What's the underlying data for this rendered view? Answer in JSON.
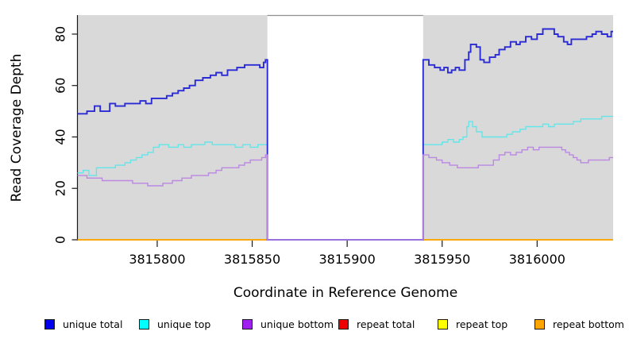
{
  "chart_data": {
    "type": "line",
    "title": "",
    "xlabel": "Coordinate in Reference Genome",
    "ylabel": "Read Coverage Depth",
    "xlim": [
      3815758,
      3816040
    ],
    "ylim": [
      0,
      87.4
    ],
    "x_ticks": [
      3815800,
      3815850,
      3815900,
      3815950,
      3816000
    ],
    "y_ticks": [
      0,
      20,
      40,
      60,
      80
    ],
    "grid": false,
    "plot_bg": "#d9d9d9",
    "gap_region": {
      "start": 3815858,
      "end": 3815940,
      "fill": "#ffffff",
      "top_border": "#8f8f8f"
    },
    "step_mode": "after",
    "legend_position": "bottom",
    "draw_order": [
      3,
      4,
      5,
      1,
      0,
      2
    ],
    "series": [
      {
        "name": "unique total",
        "color": "#2b2bd5",
        "legend_color": "#0000ee",
        "width": 1.9,
        "points": [
          [
            3815758,
            49
          ],
          [
            3815763,
            50
          ],
          [
            3815767,
            52
          ],
          [
            3815770,
            50
          ],
          [
            3815775,
            53
          ],
          [
            3815778,
            52
          ],
          [
            3815783,
            53
          ],
          [
            3815787,
            53
          ],
          [
            3815791,
            54
          ],
          [
            3815794,
            53
          ],
          [
            3815797,
            55
          ],
          [
            3815801,
            55
          ],
          [
            3815805,
            56
          ],
          [
            3815808,
            57
          ],
          [
            3815811,
            58
          ],
          [
            3815814,
            59
          ],
          [
            3815817,
            60
          ],
          [
            3815820,
            62
          ],
          [
            3815824,
            63
          ],
          [
            3815828,
            64
          ],
          [
            3815831,
            65
          ],
          [
            3815834,
            64
          ],
          [
            3815837,
            66
          ],
          [
            3815842,
            67
          ],
          [
            3815846,
            68
          ],
          [
            3815851,
            68
          ],
          [
            3815854,
            67
          ],
          [
            3815856,
            69
          ],
          [
            3815857,
            70
          ],
          [
            3815858,
            0
          ],
          [
            3815940,
            70
          ],
          [
            3815943,
            68
          ],
          [
            3815946,
            67
          ],
          [
            3815949,
            66
          ],
          [
            3815951,
            67
          ],
          [
            3815953,
            65
          ],
          [
            3815955,
            66
          ],
          [
            3815957,
            67
          ],
          [
            3815959,
            66
          ],
          [
            3815962,
            70
          ],
          [
            3815964,
            73
          ],
          [
            3815965,
            76
          ],
          [
            3815968,
            75
          ],
          [
            3815970,
            70
          ],
          [
            3815972,
            69
          ],
          [
            3815975,
            71
          ],
          [
            3815978,
            72
          ],
          [
            3815980,
            74
          ],
          [
            3815983,
            75
          ],
          [
            3815986,
            77
          ],
          [
            3815989,
            76
          ],
          [
            3815991,
            77
          ],
          [
            3815994,
            79
          ],
          [
            3815997,
            78
          ],
          [
            3816000,
            80
          ],
          [
            3816003,
            82
          ],
          [
            3816007,
            82
          ],
          [
            3816009,
            80
          ],
          [
            3816011,
            79
          ],
          [
            3816014,
            77
          ],
          [
            3816016,
            76
          ],
          [
            3816018,
            78
          ],
          [
            3816023,
            78
          ],
          [
            3816026,
            79
          ],
          [
            3816029,
            80
          ],
          [
            3816031,
            81
          ],
          [
            3816034,
            80
          ],
          [
            3816037,
            79
          ],
          [
            3816039,
            81
          ]
        ]
      },
      {
        "name": "unique top",
        "color": "#62e6ea",
        "legend_color": "#00ffff",
        "width": 1.4,
        "points": [
          [
            3815758,
            26
          ],
          [
            3815761,
            27
          ],
          [
            3815764,
            25
          ],
          [
            3815768,
            28
          ],
          [
            3815774,
            28
          ],
          [
            3815778,
            29
          ],
          [
            3815783,
            30
          ],
          [
            3815786,
            31
          ],
          [
            3815789,
            32
          ],
          [
            3815792,
            33
          ],
          [
            3815795,
            34
          ],
          [
            3815798,
            36
          ],
          [
            3815801,
            37
          ],
          [
            3815806,
            36
          ],
          [
            3815811,
            37
          ],
          [
            3815814,
            36
          ],
          [
            3815818,
            37
          ],
          [
            3815825,
            38
          ],
          [
            3815829,
            37
          ],
          [
            3815836,
            37
          ],
          [
            3815841,
            36
          ],
          [
            3815845,
            37
          ],
          [
            3815849,
            36
          ],
          [
            3815853,
            37
          ],
          [
            3815858,
            0
          ],
          [
            3815940,
            37
          ],
          [
            3815946,
            37
          ],
          [
            3815950,
            38
          ],
          [
            3815953,
            39
          ],
          [
            3815956,
            38
          ],
          [
            3815959,
            39
          ],
          [
            3815961,
            40
          ],
          [
            3815963,
            44
          ],
          [
            3815964,
            46
          ],
          [
            3815966,
            44
          ],
          [
            3815968,
            42
          ],
          [
            3815971,
            40
          ],
          [
            3815980,
            40
          ],
          [
            3815984,
            41
          ],
          [
            3815987,
            42
          ],
          [
            3815991,
            43
          ],
          [
            3815994,
            44
          ],
          [
            3816003,
            45
          ],
          [
            3816006,
            44
          ],
          [
            3816009,
            45
          ],
          [
            3816019,
            46
          ],
          [
            3816023,
            47
          ],
          [
            3816031,
            47
          ],
          [
            3816034,
            48
          ]
        ]
      },
      {
        "name": "unique bottom",
        "color": "#bb88e2",
        "legend_color": "#a020f0",
        "width": 1.4,
        "points": [
          [
            3815758,
            25
          ],
          [
            3815763,
            24
          ],
          [
            3815767,
            24
          ],
          [
            3815771,
            23
          ],
          [
            3815776,
            23
          ],
          [
            3815787,
            22
          ],
          [
            3815795,
            21
          ],
          [
            3815803,
            22
          ],
          [
            3815808,
            23
          ],
          [
            3815813,
            24
          ],
          [
            3815818,
            25
          ],
          [
            3815823,
            25
          ],
          [
            3815827,
            26
          ],
          [
            3815831,
            27
          ],
          [
            3815834,
            28
          ],
          [
            3815839,
            28
          ],
          [
            3815843,
            29
          ],
          [
            3815846,
            30
          ],
          [
            3815849,
            31
          ],
          [
            3815853,
            31
          ],
          [
            3815855,
            32
          ],
          [
            3815857,
            33
          ],
          [
            3815858,
            0
          ],
          [
            3815940,
            33
          ],
          [
            3815943,
            32
          ],
          [
            3815947,
            31
          ],
          [
            3815950,
            30
          ],
          [
            3815954,
            29
          ],
          [
            3815958,
            28
          ],
          [
            3815965,
            28
          ],
          [
            3815969,
            29
          ],
          [
            3815974,
            29
          ],
          [
            3815977,
            31
          ],
          [
            3815980,
            33
          ],
          [
            3815983,
            34
          ],
          [
            3815986,
            33
          ],
          [
            3815989,
            34
          ],
          [
            3815992,
            35
          ],
          [
            3815995,
            36
          ],
          [
            3815998,
            35
          ],
          [
            3816001,
            36
          ],
          [
            3816010,
            36
          ],
          [
            3816013,
            35
          ],
          [
            3816015,
            34
          ],
          [
            3816017,
            33
          ],
          [
            3816019,
            32
          ],
          [
            3816021,
            31
          ],
          [
            3816023,
            30
          ],
          [
            3816027,
            31
          ],
          [
            3816035,
            31
          ],
          [
            3816038,
            32
          ]
        ]
      },
      {
        "name": "repeat total",
        "color": "#e00000",
        "legend_color": "#ee0000",
        "width": 1.4,
        "points": [
          [
            3815758,
            0
          ],
          [
            3816039,
            0
          ]
        ]
      },
      {
        "name": "repeat top",
        "color": "#f0f000",
        "legend_color": "#ffff00",
        "width": 1.4,
        "points": [
          [
            3815758,
            0
          ],
          [
            3816039,
            0
          ]
        ]
      },
      {
        "name": "repeat bottom",
        "color": "#ffa500",
        "legend_color": "#ffa500",
        "width": 1.6,
        "points": [
          [
            3815758,
            0
          ],
          [
            3816039,
            0
          ]
        ]
      }
    ]
  },
  "legend": {
    "items": [
      {
        "label": "unique total",
        "color": "#0000ee"
      },
      {
        "label": "unique top",
        "color": "#00ffff"
      },
      {
        "label": "unique bottom",
        "color": "#a020f0"
      },
      {
        "label": "repeat total",
        "color": "#ee0000"
      },
      {
        "label": "repeat top",
        "color": "#ffff00"
      },
      {
        "label": "repeat bottom",
        "color": "#ffa500"
      }
    ]
  }
}
